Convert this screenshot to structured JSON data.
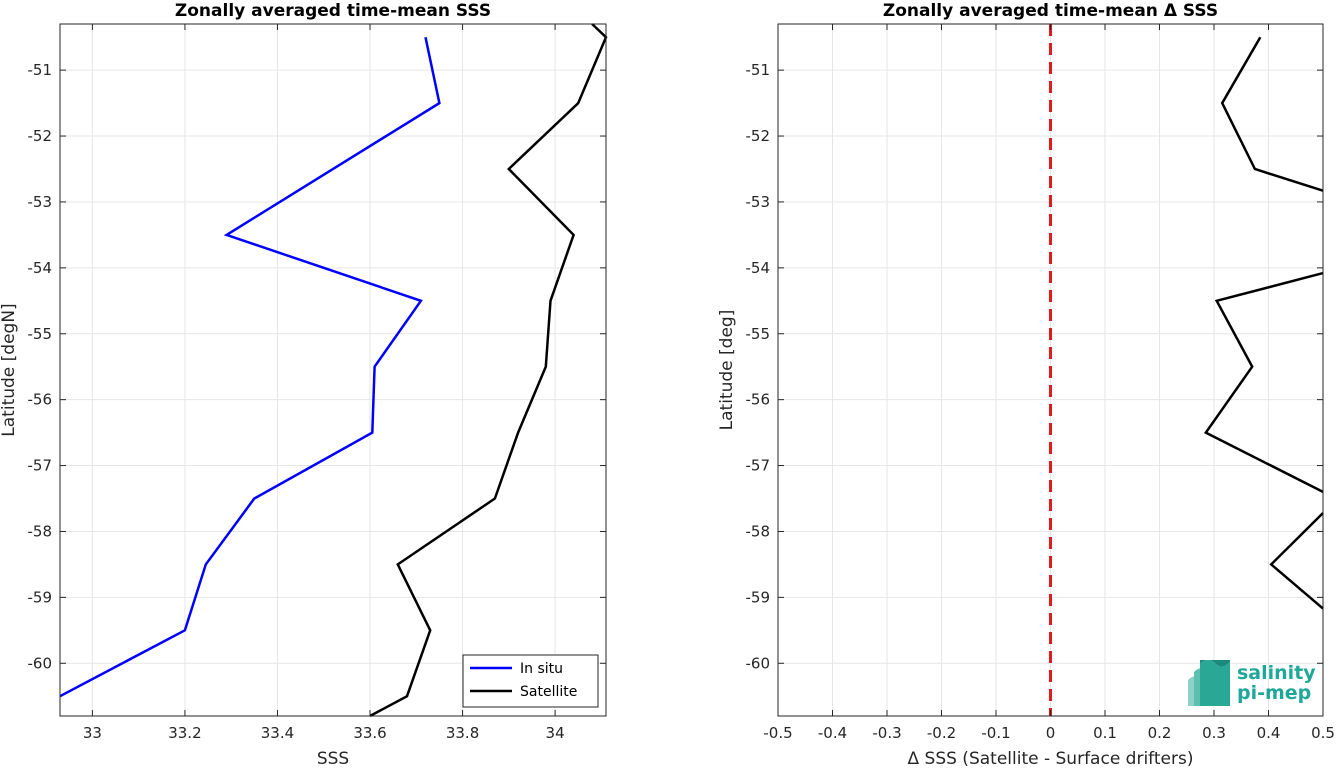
{
  "colors": {
    "in_situ": "#0000ff",
    "satellite": "#000000",
    "zero_line": "#e31a1c",
    "grid": "#e6e6e6",
    "logo": "#1fa89a"
  },
  "logo": {
    "line1": "salinity",
    "line2": "pi-mep"
  },
  "chart_data": [
    {
      "type": "line",
      "title": "Zonally averaged time-mean SSS",
      "xlabel": "SSS",
      "ylabel": "Latitude [degN]",
      "xlim": [
        32.93,
        34.11
      ],
      "ylim": [
        -60.8,
        -50.3
      ],
      "xticks": [
        33,
        33.2,
        33.4,
        33.6,
        33.8,
        34
      ],
      "xtick_labels": [
        "33",
        "33.2",
        "33.4",
        "33.6",
        "33.8",
        "34"
      ],
      "yticks": [
        -51,
        -52,
        -53,
        -54,
        -55,
        -56,
        -57,
        -58,
        -59,
        -60
      ],
      "ytick_labels": [
        "-51",
        "-52",
        "-53",
        "-54",
        "-55",
        "-56",
        "-57",
        "-58",
        "-59",
        "-60"
      ],
      "grid": true,
      "legend": "bottom-right",
      "series": [
        {
          "name": "In situ",
          "color": "#0000ff",
          "x": [
            33.72,
            33.75,
            33.29,
            33.71,
            33.61,
            33.605,
            33.35,
            33.245,
            33.2,
            32.93
          ],
          "y": [
            -50.5,
            -51.5,
            -53.5,
            -54.5,
            -55.5,
            -56.5,
            -57.5,
            -58.5,
            -59.5,
            -60.5
          ]
        },
        {
          "name": "Satellite",
          "color": "#000000",
          "x": [
            34.08,
            34.11,
            34.05,
            33.9,
            34.04,
            33.99,
            33.98,
            33.92,
            33.87,
            33.66,
            33.73,
            33.68,
            33.6
          ],
          "y": [
            -50.3,
            -50.5,
            -51.5,
            -52.5,
            -53.5,
            -54.5,
            -55.5,
            -56.5,
            -57.5,
            -58.5,
            -59.5,
            -60.5,
            -60.8
          ]
        }
      ]
    },
    {
      "type": "line",
      "title": "Zonally averaged time-mean Δ SSS",
      "xlabel": "Δ SSS (Satellite - Surface drifters)",
      "ylabel": "Latitude [deg]",
      "xlim": [
        -0.5,
        0.5
      ],
      "ylim": [
        -60.8,
        -50.3
      ],
      "xticks": [
        -0.5,
        -0.4,
        -0.3,
        -0.2,
        -0.1,
        0,
        0.1,
        0.2,
        0.3,
        0.4,
        0.5
      ],
      "xtick_labels": [
        "-0.5",
        "-0.4",
        "-0.3",
        "-0.2",
        "-0.1",
        "0",
        "0.1",
        "0.2",
        "0.3",
        "0.4",
        "0.5"
      ],
      "yticks": [
        -51,
        -52,
        -53,
        -54,
        -55,
        -56,
        -57,
        -58,
        -59,
        -60
      ],
      "ytick_labels": [
        "-51",
        "-52",
        "-53",
        "-54",
        "-55",
        "-56",
        "-57",
        "-58",
        "-59",
        "-60"
      ],
      "grid": true,
      "zero_line": 0,
      "series": [
        {
          "color": "#000000",
          "x": [
            0.385,
            0.315,
            0.375,
            0.5
          ],
          "y": [
            -50.5,
            -51.5,
            -52.5,
            -52.83
          ]
        },
        {
          "color": "#000000",
          "x": [
            0.5,
            0.305,
            0.37,
            0.285,
            0.5
          ],
          "y": [
            -54.08,
            -54.5,
            -55.5,
            -56.5,
            -57.4
          ]
        },
        {
          "color": "#000000",
          "x": [
            0.5,
            0.405,
            0.5
          ],
          "y": [
            -57.72,
            -58.5,
            -59.17
          ]
        }
      ]
    }
  ]
}
